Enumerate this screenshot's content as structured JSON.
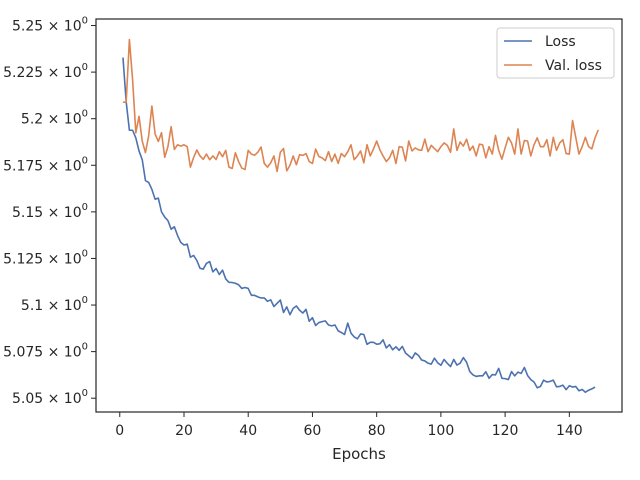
{
  "chart_data": {
    "type": "line",
    "title": "",
    "xlabel": "Epochs",
    "ylabel": "",
    "xlim": [
      -7.4,
      156.4
    ],
    "ylim": [
      5.0426,
      5.2535
    ],
    "grid": false,
    "legend_position": "top-right",
    "x_ticks": [
      0,
      20,
      40,
      60,
      80,
      100,
      120,
      140
    ],
    "x_tick_labels": [
      "0",
      "20",
      "40",
      "60",
      "80",
      "100",
      "120",
      "140"
    ],
    "y_ticks": [
      5.05,
      5.075,
      5.1,
      5.125,
      5.15,
      5.175,
      5.2,
      5.225,
      5.25
    ],
    "y_tick_labels": [
      {
        "mantissa": "5.05",
        "exp": "0"
      },
      {
        "mantissa": "5.075",
        "exp": "0"
      },
      {
        "mantissa": "5.1",
        "exp": "0"
      },
      {
        "mantissa": "5.125",
        "exp": "0"
      },
      {
        "mantissa": "5.15",
        "exp": "0"
      },
      {
        "mantissa": "5.175",
        "exp": "0"
      },
      {
        "mantissa": "5.2",
        "exp": "0"
      },
      {
        "mantissa": "5.225",
        "exp": "0"
      },
      {
        "mantissa": "5.25",
        "exp": "0"
      }
    ],
    "x_start": 1,
    "series": [
      {
        "name": "Loss",
        "color": "#4c72b0",
        "values": [
          5.2328,
          5.209,
          5.1938,
          5.1938,
          5.1897,
          5.1827,
          5.178,
          5.1668,
          5.1658,
          5.1621,
          5.1568,
          5.1574,
          5.15,
          5.1472,
          5.1453,
          5.1407,
          5.142,
          5.1373,
          5.1336,
          5.1322,
          5.1327,
          5.1257,
          5.1266,
          5.1239,
          5.1197,
          5.1193,
          5.1224,
          5.1233,
          5.1178,
          5.1196,
          5.1164,
          5.1187,
          5.114,
          5.1122,
          5.1121,
          5.1117,
          5.1109,
          5.1089,
          5.1094,
          5.1089,
          5.1052,
          5.1052,
          5.1044,
          5.1038,
          5.1038,
          5.102,
          5.1028,
          5.0992,
          5.1009,
          5.1027,
          5.096,
          5.099,
          5.0948,
          5.0982,
          5.0995,
          5.0972,
          5.0957,
          5.0977,
          5.0913,
          5.0932,
          5.089,
          5.0906,
          5.0911,
          5.0915,
          5.0893,
          5.0888,
          5.0893,
          5.0862,
          5.0852,
          5.0842,
          5.0903,
          5.0849,
          5.0829,
          5.0819,
          5.0845,
          5.0842,
          5.0789,
          5.08,
          5.08,
          5.079,
          5.0792,
          5.0813,
          5.077,
          5.0787,
          5.076,
          5.0776,
          5.0757,
          5.0778,
          5.0742,
          5.0728,
          5.0713,
          5.0743,
          5.073,
          5.0705,
          5.07,
          5.0688,
          5.0683,
          5.0715,
          5.069,
          5.0677,
          5.0708,
          5.0687,
          5.067,
          5.0708,
          5.0678,
          5.0688,
          5.0718,
          5.0693,
          5.0643,
          5.0625,
          5.0617,
          5.062,
          5.062,
          5.0642,
          5.0607,
          5.0627,
          5.0625,
          5.066,
          5.0607,
          5.0605,
          5.06,
          5.0643,
          5.062,
          5.064,
          5.0633,
          5.0665,
          5.0622,
          5.06,
          5.0587,
          5.0556,
          5.0563,
          5.0597,
          5.0587,
          5.059,
          5.0597,
          5.0561,
          5.0563,
          5.057,
          5.0546,
          5.0567,
          5.056,
          5.0563,
          5.054,
          5.0547,
          5.0532,
          5.0543,
          5.055,
          5.056
        ]
      },
      {
        "name": "Val. loss",
        "color": "#dd8452",
        "values": [
          5.2088,
          5.209,
          5.2425,
          5.2208,
          5.1924,
          5.2013,
          5.188,
          5.1818,
          5.1908,
          5.2068,
          5.1918,
          5.1878,
          5.1925,
          5.1793,
          5.185,
          5.1957,
          5.1835,
          5.186,
          5.1853,
          5.186,
          5.185,
          5.174,
          5.1792,
          5.1832,
          5.18,
          5.1782,
          5.181,
          5.178,
          5.18,
          5.1781,
          5.1823,
          5.1796,
          5.183,
          5.174,
          5.1733,
          5.1817,
          5.177,
          5.1735,
          5.1727,
          5.183,
          5.181,
          5.1804,
          5.182,
          5.1848,
          5.176,
          5.174,
          5.1763,
          5.18,
          5.1717,
          5.182,
          5.184,
          5.172,
          5.175,
          5.18,
          5.1753,
          5.1807,
          5.1803,
          5.1813,
          5.177,
          5.176,
          5.1837,
          5.1797,
          5.179,
          5.1775,
          5.1823,
          5.177,
          5.181,
          5.176,
          5.1813,
          5.1796,
          5.1823,
          5.186,
          5.178,
          5.18,
          5.1827,
          5.1763,
          5.186,
          5.18,
          5.1837,
          5.188,
          5.1833,
          5.18,
          5.177,
          5.179,
          5.183,
          5.176,
          5.185,
          5.1847,
          5.1773,
          5.188,
          5.1827,
          5.1843,
          5.1833,
          5.183,
          5.189,
          5.1823,
          5.1857,
          5.184,
          5.1823,
          5.185,
          5.187,
          5.1857,
          5.182,
          5.1945,
          5.183,
          5.1875,
          5.1853,
          5.189,
          5.183,
          5.1853,
          5.18,
          5.1863,
          5.186,
          5.179,
          5.185,
          5.181,
          5.191,
          5.183,
          5.1783,
          5.1843,
          5.19,
          5.187,
          5.181,
          5.1945,
          5.181,
          5.1883,
          5.188,
          5.18,
          5.186,
          5.1897,
          5.185,
          5.185,
          5.1887,
          5.18,
          5.19,
          5.183,
          5.187,
          5.1887,
          5.1813,
          5.181,
          5.199,
          5.19,
          5.181,
          5.185,
          5.19,
          5.185,
          5.1838,
          5.1897,
          5.194
        ]
      }
    ]
  }
}
